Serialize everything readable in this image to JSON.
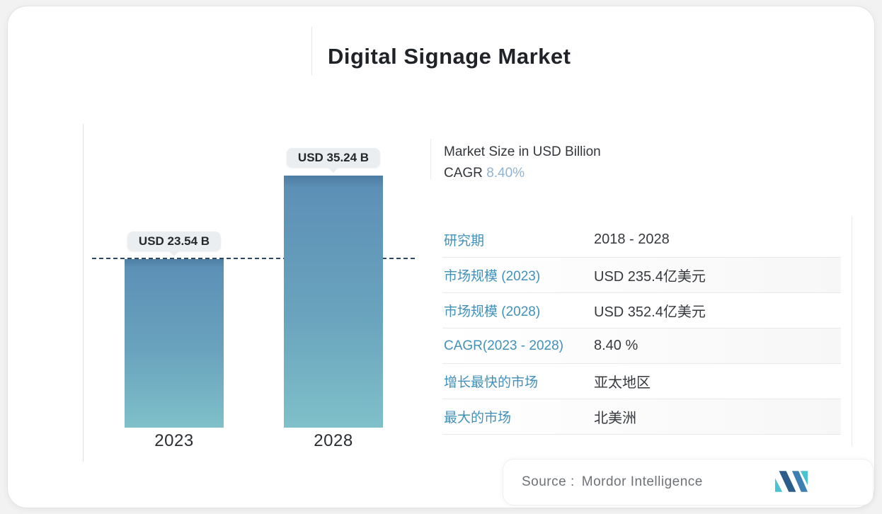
{
  "page": {
    "title": "Digital Signage Market"
  },
  "chart_data": {
    "type": "bar",
    "title": "Digital Signage Market",
    "categories": [
      "2023",
      "2028"
    ],
    "values": [
      23.54,
      35.24
    ],
    "data_labels": [
      "USD 23.54 B",
      "USD 35.24 B"
    ],
    "ylabel": "Market Size in USD Billion",
    "ylim": [
      0,
      40
    ],
    "grid": false,
    "legend": false,
    "reference_line": {
      "value": 23.54,
      "style": "dashed",
      "color": "#2c4a68"
    },
    "bar_gradient_top": "#5d90b6",
    "bar_gradient_bottom": "#7fc0c9"
  },
  "panel": {
    "heading_line1": "Market Size in USD Billion",
    "cagr_label": "CAGR",
    "cagr_value": "8.40%",
    "table": {
      "rows": [
        {
          "label": "研究期",
          "value": "2018 - 2028"
        },
        {
          "label": "市场规模 (2023)",
          "value": "USD 235.4亿美元"
        },
        {
          "label": "市场规模 (2028)",
          "value": "USD 352.4亿美元"
        },
        {
          "label": "CAGR(2023 - 2028)",
          "value": "8.40 %"
        },
        {
          "label": "增长最快的市场",
          "value": "亚太地区"
        },
        {
          "label": "最大的市场",
          "value": "北美洲"
        }
      ]
    }
  },
  "footer": {
    "source_label": "Source :",
    "source_name": "Mordor Intelligence",
    "logo_name": "mordor-intelligence-logo"
  },
  "colors": {
    "accent_blue": "#4191ba",
    "cagr_value_blue": "#8fb3d2",
    "dashed_line": "#2c4a68",
    "bar_top": "#5d90b6",
    "bar_bottom": "#7fc0c9"
  }
}
